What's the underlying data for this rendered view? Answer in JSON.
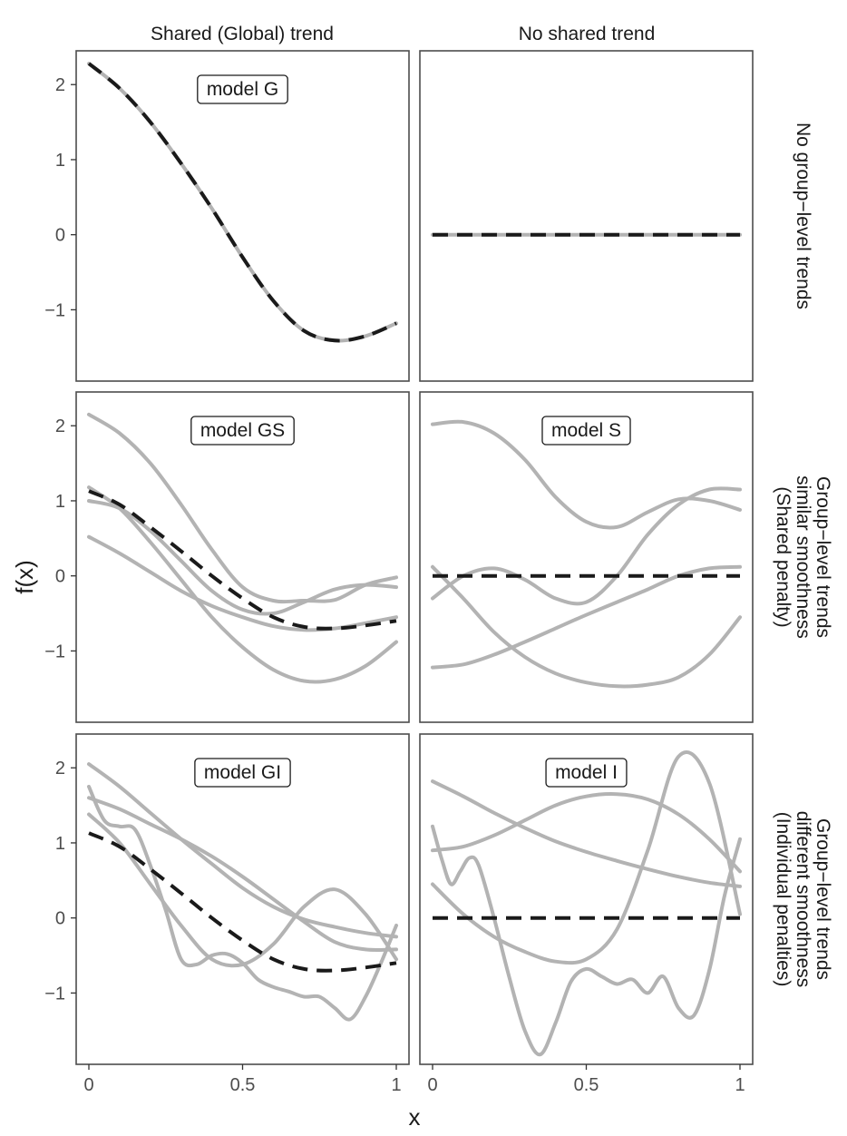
{
  "chart_data": {
    "type": "line",
    "layout": "faceted 3 rows x 2 columns",
    "xlabel": "x",
    "ylabel": "f(x)",
    "xlim": [
      0,
      1
    ],
    "ylim": [
      -1.95,
      2.45
    ],
    "x_ticks": [
      0,
      0.5,
      1
    ],
    "x_tick_labels": [
      "0",
      "0.5",
      "1"
    ],
    "y_ticks": [
      -1,
      0,
      1,
      2
    ],
    "y_tick_labels": [
      "−1",
      "0",
      "1",
      "2"
    ],
    "grid": false,
    "colors": {
      "group_curve": "#b3b3b3",
      "shared_curve": "#1a1a1a",
      "panel_border": "#4d4d4d"
    },
    "column_labels": [
      "Shared (Global) trend",
      "No shared trend"
    ],
    "row_labels": [
      [
        "No group−level trends"
      ],
      [
        "Group−level trends",
        "similar smoothness",
        "(Shared penalty)"
      ],
      [
        "Group−level trends",
        "different smoothness",
        "(Individual penalties)"
      ]
    ],
    "panels": [
      {
        "row": 0,
        "col": 0,
        "label": "model G",
        "dashed": {
          "x": [
            0,
            0.1,
            0.2,
            0.3,
            0.4,
            0.5,
            0.6,
            0.7,
            0.8,
            0.9,
            1.0
          ],
          "y": [
            2.28,
            1.95,
            1.5,
            0.95,
            0.35,
            -0.3,
            -0.88,
            -1.28,
            -1.41,
            -1.35,
            -1.18
          ]
        },
        "group": [
          {
            "x": [
              0,
              0.1,
              0.2,
              0.3,
              0.4,
              0.5,
              0.6,
              0.7,
              0.8,
              0.9,
              1.0
            ],
            "y": [
              2.28,
              1.95,
              1.5,
              0.95,
              0.35,
              -0.3,
              -0.88,
              -1.28,
              -1.41,
              -1.35,
              -1.18
            ]
          }
        ]
      },
      {
        "row": 0,
        "col": 1,
        "label": "",
        "dashed": {
          "x": [
            0,
            1
          ],
          "y": [
            0,
            0
          ]
        },
        "group": [
          {
            "x": [
              0,
              1
            ],
            "y": [
              0,
              0
            ]
          }
        ]
      },
      {
        "row": 1,
        "col": 0,
        "label": "model GS",
        "dashed": {
          "x": [
            0,
            0.1,
            0.2,
            0.3,
            0.4,
            0.5,
            0.6,
            0.7,
            0.8,
            0.9,
            1.0
          ],
          "y": [
            1.13,
            0.95,
            0.65,
            0.33,
            0.0,
            -0.3,
            -0.55,
            -0.68,
            -0.7,
            -0.66,
            -0.6
          ]
        },
        "group": [
          {
            "x": [
              0,
              0.1,
              0.2,
              0.3,
              0.4,
              0.5,
              0.6,
              0.7,
              0.8,
              0.9,
              1.0
            ],
            "y": [
              2.15,
              1.9,
              1.5,
              0.95,
              0.35,
              -0.15,
              -0.33,
              -0.33,
              -0.32,
              -0.12,
              -0.02
            ]
          },
          {
            "x": [
              0,
              0.1,
              0.2,
              0.3,
              0.4,
              0.5,
              0.6,
              0.7,
              0.8,
              0.9,
              1.0
            ],
            "y": [
              1.18,
              0.9,
              0.45,
              -0.05,
              -0.55,
              -0.95,
              -1.25,
              -1.4,
              -1.38,
              -1.2,
              -0.88
            ]
          },
          {
            "x": [
              0,
              0.1,
              0.2,
              0.3,
              0.4,
              0.5,
              0.6,
              0.7,
              0.8,
              0.9,
              1.0
            ],
            "y": [
              1.0,
              0.9,
              0.6,
              0.2,
              -0.2,
              -0.45,
              -0.5,
              -0.35,
              -0.18,
              -0.12,
              -0.15
            ]
          },
          {
            "x": [
              0,
              0.1,
              0.2,
              0.3,
              0.4,
              0.5,
              0.6,
              0.7,
              0.8,
              0.9,
              1.0
            ],
            "y": [
              0.52,
              0.3,
              0.05,
              -0.2,
              -0.4,
              -0.55,
              -0.67,
              -0.72,
              -0.7,
              -0.63,
              -0.55
            ]
          }
        ]
      },
      {
        "row": 1,
        "col": 1,
        "label": "model S",
        "dashed": {
          "x": [
            0,
            1
          ],
          "y": [
            0,
            0
          ]
        },
        "group": [
          {
            "x": [
              0,
              0.1,
              0.2,
              0.3,
              0.4,
              0.5,
              0.6,
              0.7,
              0.8,
              0.9,
              1.0
            ],
            "y": [
              2.02,
              2.05,
              1.9,
              1.55,
              1.05,
              0.72,
              0.65,
              0.85,
              1.02,
              1.0,
              0.88
            ]
          },
          {
            "x": [
              0,
              0.1,
              0.2,
              0.3,
              0.4,
              0.5,
              0.6,
              0.7,
              0.8,
              0.9,
              1.0
            ],
            "y": [
              -0.3,
              0.0,
              0.1,
              -0.05,
              -0.3,
              -0.35,
              0.0,
              0.55,
              0.95,
              1.15,
              1.15
            ]
          },
          {
            "x": [
              0,
              0.1,
              0.2,
              0.3,
              0.4,
              0.5,
              0.6,
              0.7,
              0.8,
              0.9,
              1.0
            ],
            "y": [
              0.12,
              -0.3,
              -0.75,
              -1.08,
              -1.3,
              -1.42,
              -1.47,
              -1.45,
              -1.35,
              -1.05,
              -0.55
            ]
          },
          {
            "x": [
              0,
              0.1,
              0.2,
              0.3,
              0.4,
              0.5,
              0.6,
              0.7,
              0.8,
              0.9,
              1.0
            ],
            "y": [
              -1.22,
              -1.18,
              -1.05,
              -0.88,
              -0.7,
              -0.52,
              -0.35,
              -0.18,
              0.0,
              0.1,
              0.12
            ]
          }
        ]
      },
      {
        "row": 2,
        "col": 0,
        "label": "model GI",
        "dashed": {
          "x": [
            0,
            0.1,
            0.2,
            0.3,
            0.4,
            0.5,
            0.6,
            0.7,
            0.8,
            0.9,
            1.0
          ],
          "y": [
            1.13,
            0.95,
            0.65,
            0.33,
            0.0,
            -0.3,
            -0.55,
            -0.68,
            -0.7,
            -0.66,
            -0.6
          ]
        },
        "group": [
          {
            "x": [
              0,
              0.1,
              0.2,
              0.3,
              0.4,
              0.5,
              0.6,
              0.7,
              0.8,
              0.9,
              1.0
            ],
            "y": [
              2.05,
              1.75,
              1.4,
              1.05,
              0.72,
              0.4,
              0.15,
              -0.02,
              -0.12,
              -0.2,
              -0.25
            ]
          },
          {
            "x": [
              0,
              0.1,
              0.2,
              0.3,
              0.4,
              0.5,
              0.6,
              0.7,
              0.8,
              0.9,
              1.0
            ],
            "y": [
              1.6,
              1.45,
              1.25,
              1.05,
              0.82,
              0.55,
              0.25,
              -0.05,
              -0.32,
              -0.42,
              -0.42
            ]
          },
          {
            "x": [
              0,
              0.05,
              0.1,
              0.15,
              0.2,
              0.25,
              0.3,
              0.35,
              0.4,
              0.45,
              0.5,
              0.55,
              0.6,
              0.65,
              0.7,
              0.75,
              0.8,
              0.85,
              0.9,
              0.95,
              1.0
            ],
            "y": [
              1.75,
              1.3,
              1.22,
              1.18,
              0.7,
              0.1,
              -0.55,
              -0.62,
              -0.5,
              -0.48,
              -0.6,
              -0.82,
              -0.92,
              -0.98,
              -1.05,
              -1.05,
              -1.2,
              -1.35,
              -1.05,
              -0.6,
              -0.1
            ]
          },
          {
            "x": [
              0,
              0.1,
              0.2,
              0.3,
              0.4,
              0.5,
              0.6,
              0.7,
              0.8,
              0.9,
              1.0
            ],
            "y": [
              1.38,
              1.0,
              0.45,
              -0.1,
              -0.55,
              -0.62,
              -0.35,
              0.15,
              0.38,
              0.05,
              -0.55
            ]
          }
        ]
      },
      {
        "row": 2,
        "col": 1,
        "label": "model I",
        "dashed": {
          "x": [
            0,
            1
          ],
          "y": [
            0,
            0
          ]
        },
        "group": [
          {
            "x": [
              0,
              0.1,
              0.2,
              0.3,
              0.4,
              0.5,
              0.6,
              0.7,
              0.8,
              0.9,
              1.0
            ],
            "y": [
              1.82,
              1.62,
              1.4,
              1.2,
              1.02,
              0.88,
              0.76,
              0.65,
              0.55,
              0.47,
              0.42
            ]
          },
          {
            "x": [
              0,
              0.1,
              0.2,
              0.3,
              0.4,
              0.5,
              0.6,
              0.7,
              0.8,
              0.9,
              1.0
            ],
            "y": [
              0.9,
              0.95,
              1.1,
              1.3,
              1.5,
              1.62,
              1.65,
              1.58,
              1.38,
              1.05,
              0.62
            ]
          },
          {
            "x": [
              0,
              0.1,
              0.2,
              0.3,
              0.4,
              0.5,
              0.6,
              0.7,
              0.8,
              0.9,
              1.0
            ],
            "y": [
              0.45,
              0.05,
              -0.25,
              -0.45,
              -0.58,
              -0.55,
              -0.15,
              0.9,
              2.15,
              1.8,
              0.05
            ]
          },
          {
            "x": [
              0,
              0.03,
              0.06,
              0.09,
              0.12,
              0.15,
              0.2,
              0.25,
              0.3,
              0.35,
              0.4,
              0.45,
              0.5,
              0.55,
              0.6,
              0.65,
              0.7,
              0.75,
              0.8,
              0.85,
              0.9,
              0.95,
              1.0
            ],
            "y": [
              1.22,
              0.78,
              0.45,
              0.62,
              0.8,
              0.7,
              0.0,
              -0.8,
              -1.5,
              -1.82,
              -1.4,
              -0.85,
              -0.68,
              -0.78,
              -0.88,
              -0.82,
              -1.0,
              -0.78,
              -1.2,
              -1.3,
              -0.7,
              0.3,
              1.05
            ]
          }
        ]
      }
    ]
  }
}
